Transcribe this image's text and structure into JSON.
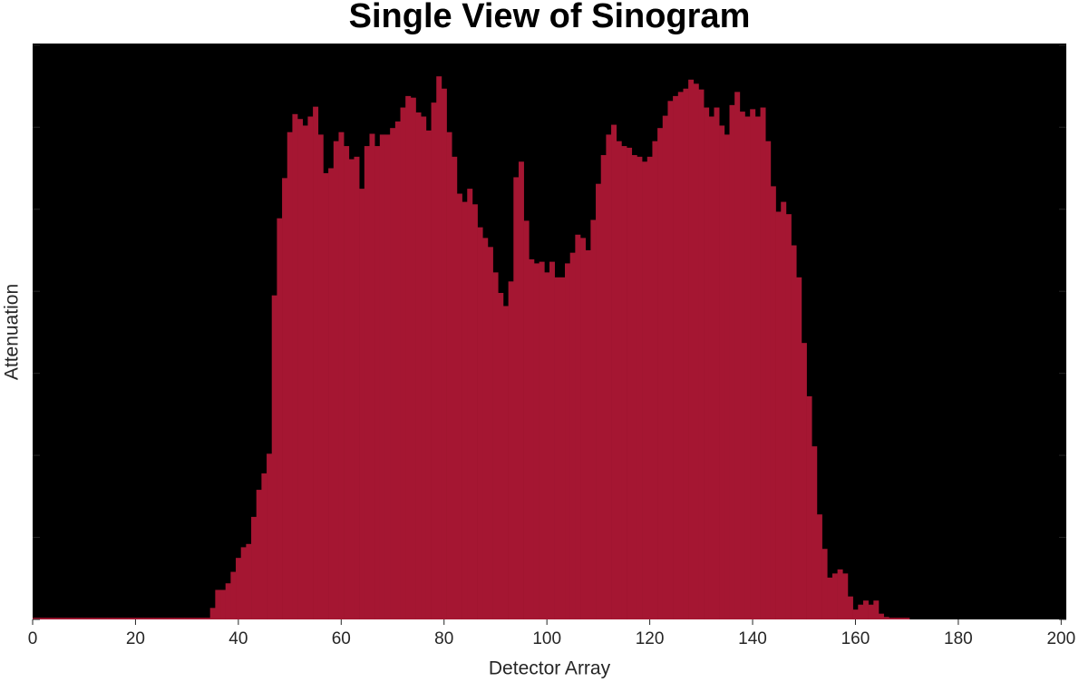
{
  "chart_data": {
    "type": "bar",
    "title": "Single View of Sinogram",
    "xlabel": "Detector Array",
    "ylabel": "Attenuation",
    "color": "#a51632",
    "background": "#000000",
    "x": [
      0,
      1,
      2,
      3,
      4,
      5,
      6,
      7,
      8,
      9,
      10,
      11,
      12,
      13,
      14,
      15,
      16,
      17,
      18,
      19,
      20,
      21,
      22,
      23,
      24,
      25,
      26,
      27,
      28,
      29,
      30,
      31,
      32,
      33,
      34,
      35,
      36,
      37,
      38,
      39,
      40,
      41,
      42,
      43,
      44,
      45,
      46,
      47,
      48,
      49,
      50,
      51,
      52,
      53,
      54,
      55,
      56,
      57,
      58,
      59,
      60,
      61,
      62,
      63,
      64,
      65,
      66,
      67,
      68,
      69,
      70,
      71,
      72,
      73,
      74,
      75,
      76,
      77,
      78,
      79,
      80,
      81,
      82,
      83,
      84,
      85,
      86,
      87,
      88,
      89,
      90,
      91,
      92,
      93,
      94,
      95,
      96,
      97,
      98,
      99,
      100,
      101,
      102,
      103,
      104,
      105,
      106,
      107,
      108,
      109,
      110,
      111,
      112,
      113,
      114,
      115,
      116,
      117,
      118,
      119,
      120,
      121,
      122,
      123,
      124,
      125,
      126,
      127,
      128,
      129,
      130,
      131,
      132,
      133,
      134,
      135,
      136,
      137,
      138,
      139,
      140,
      141,
      142,
      143,
      144,
      145,
      146,
      147,
      148,
      149,
      150,
      151,
      152,
      153,
      154,
      155,
      156,
      157,
      158,
      159,
      160,
      161,
      162,
      163,
      164,
      165,
      166,
      167,
      168,
      169,
      170,
      171,
      172,
      173,
      174,
      175,
      176,
      177,
      178,
      179,
      180,
      181,
      182,
      183,
      184,
      185,
      186,
      187,
      188,
      189,
      190,
      191,
      192,
      193,
      194,
      195,
      196,
      197,
      198,
      199,
      200
    ],
    "values": [
      0.02,
      0.02,
      0.02,
      0.02,
      0.02,
      0.02,
      0.02,
      0.02,
      0.02,
      0.02,
      0.02,
      0.02,
      0.02,
      0.02,
      0.02,
      0.02,
      0.02,
      0.02,
      0.02,
      0.02,
      0.02,
      0.02,
      0.02,
      0.02,
      0.02,
      0.02,
      0.02,
      0.02,
      0.02,
      0.02,
      0.02,
      0.02,
      0.02,
      0.02,
      0.02,
      0.14,
      0.36,
      0.36,
      0.44,
      0.58,
      0.75,
      0.88,
      0.92,
      1.25,
      1.58,
      1.78,
      2.02,
      3.95,
      4.89,
      5.38,
      5.94,
      6.16,
      6.1,
      6.02,
      6.13,
      6.25,
      5.91,
      5.44,
      5.5,
      5.83,
      5.94,
      5.77,
      5.61,
      5.64,
      5.25,
      5.77,
      5.92,
      5.77,
      5.91,
      5.91,
      5.99,
      6.07,
      6.24,
      6.38,
      6.36,
      6.18,
      6.13,
      5.96,
      6.3,
      6.62,
      6.47,
      5.94,
      5.64,
      5.19,
      5.09,
      5.25,
      5.06,
      4.78,
      4.65,
      4.54,
      4.23,
      3.98,
      3.82,
      4.12,
      5.39,
      5.58,
      4.86,
      4.39,
      4.34,
      4.36,
      4.23,
      4.36,
      4.17,
      4.17,
      4.34,
      4.47,
      4.69,
      4.65,
      4.5,
      4.87,
      5.31,
      5.66,
      5.91,
      6.03,
      5.83,
      5.77,
      5.75,
      5.66,
      5.64,
      5.58,
      5.64,
      5.83,
      5.99,
      6.14,
      6.32,
      6.38,
      6.43,
      6.47,
      6.58,
      6.53,
      6.46,
      6.24,
      6.13,
      6.24,
      6.02,
      5.91,
      6.27,
      6.43,
      6.19,
      6.13,
      6.22,
      6.13,
      6.24,
      5.83,
      5.28,
      4.97,
      5.09,
      4.94,
      4.56,
      4.17,
      3.37,
      2.72,
      2.11,
      1.28,
      0.86,
      0.51,
      0.56,
      0.61,
      0.56,
      0.28,
      0.12,
      0.18,
      0.23,
      0.18,
      0.23,
      0.07,
      0.03,
      0.02,
      0.02,
      0.02,
      0.02,
      0,
      0,
      0,
      0,
      0,
      0,
      0,
      0,
      0,
      0,
      0,
      0,
      0,
      0,
      0,
      0,
      0,
      0,
      0,
      0,
      0,
      0,
      0,
      0,
      0,
      0,
      0,
      0,
      0,
      0
    ],
    "xlim": [
      0,
      201
    ],
    "xticks": [
      0,
      20,
      40,
      60,
      80,
      100,
      120,
      140,
      160,
      180,
      200
    ],
    "ylim": [
      0,
      7.02
    ],
    "yticks": [
      0,
      1,
      2,
      3,
      4,
      5,
      6,
      7
    ]
  }
}
